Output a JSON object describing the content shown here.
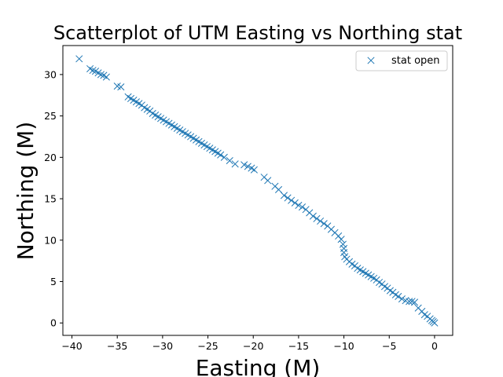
{
  "chart_data": {
    "type": "scatter",
    "title": "Scatterplot of UTM Easting vs Northing stat",
    "xlabel": "Easting (M)",
    "ylabel": "Northing (M)",
    "xlim": [
      -41,
      2
    ],
    "ylim": [
      -1.5,
      33.5
    ],
    "xticks": [
      -40,
      -35,
      -30,
      -25,
      -20,
      -15,
      -10,
      -5,
      0
    ],
    "yticks": [
      0,
      5,
      10,
      15,
      20,
      25,
      30
    ],
    "grid": false,
    "legend_position": "top-right",
    "marker": "x",
    "color": "#1f77b4",
    "series": [
      {
        "name": "stat open",
        "x": [
          -39.2,
          -38.0,
          -37.7,
          -37.4,
          -37.1,
          -36.8,
          -36.5,
          -36.2,
          -35.0,
          -34.6,
          -33.8,
          -33.5,
          -33.2,
          -32.9,
          -32.6,
          -32.3,
          -32.0,
          -31.7,
          -31.4,
          -31.1,
          -30.8,
          -30.5,
          -30.2,
          -29.9,
          -29.6,
          -29.3,
          -29.0,
          -28.7,
          -28.4,
          -28.1,
          -27.8,
          -27.5,
          -27.2,
          -26.9,
          -26.6,
          -26.3,
          -26.0,
          -25.7,
          -25.4,
          -25.1,
          -24.8,
          -24.5,
          -24.2,
          -23.9,
          -23.6,
          -23.2,
          -22.6,
          -22.0,
          -21.0,
          -20.6,
          -20.2,
          -19.9,
          -18.8,
          -18.4,
          -17.6,
          -17.2,
          -16.6,
          -16.2,
          -15.8,
          -15.4,
          -15.0,
          -14.6,
          -14.2,
          -13.8,
          -13.4,
          -13.0,
          -12.6,
          -12.2,
          -11.8,
          -11.4,
          -11.0,
          -10.6,
          -10.3,
          -10.1,
          -10.0,
          -10.0,
          -9.9,
          -9.7,
          -9.4,
          -9.1,
          -8.8,
          -8.5,
          -8.2,
          -7.9,
          -7.6,
          -7.3,
          -7.0,
          -6.7,
          -6.4,
          -6.1,
          -5.8,
          -5.5,
          -5.2,
          -4.9,
          -4.6,
          -4.3,
          -4.0,
          -3.6,
          -3.2,
          -2.8,
          -2.5,
          -2.2,
          -1.8,
          -1.4,
          -1.1,
          -0.8,
          -0.5,
          -0.3,
          -0.15,
          0.0
        ],
        "y": [
          31.9,
          30.7,
          30.5,
          30.4,
          30.2,
          30.0,
          29.9,
          29.7,
          28.6,
          28.5,
          27.3,
          27.1,
          26.9,
          26.7,
          26.5,
          26.3,
          26.0,
          25.8,
          25.6,
          25.3,
          25.1,
          24.9,
          24.7,
          24.5,
          24.3,
          24.1,
          23.9,
          23.7,
          23.5,
          23.3,
          23.1,
          22.9,
          22.7,
          22.5,
          22.3,
          22.1,
          21.9,
          21.7,
          21.5,
          21.3,
          21.1,
          20.9,
          20.7,
          20.5,
          20.3,
          20.0,
          19.6,
          19.2,
          19.1,
          18.9,
          18.7,
          18.5,
          17.6,
          17.2,
          16.5,
          16.1,
          15.4,
          15.1,
          14.8,
          14.5,
          14.2,
          14.0,
          13.7,
          13.3,
          12.9,
          12.6,
          12.3,
          12.0,
          11.7,
          11.3,
          10.9,
          10.5,
          10.1,
          9.5,
          9.0,
          8.5,
          8.0,
          7.7,
          7.4,
          7.1,
          6.9,
          6.6,
          6.4,
          6.2,
          6.0,
          5.8,
          5.6,
          5.4,
          5.2,
          4.9,
          4.7,
          4.4,
          4.2,
          3.9,
          3.7,
          3.4,
          3.2,
          2.9,
          2.7,
          2.6,
          2.6,
          2.5,
          1.8,
          1.4,
          1.0,
          0.8,
          0.5,
          0.3,
          0.15,
          0.0
        ]
      }
    ]
  }
}
